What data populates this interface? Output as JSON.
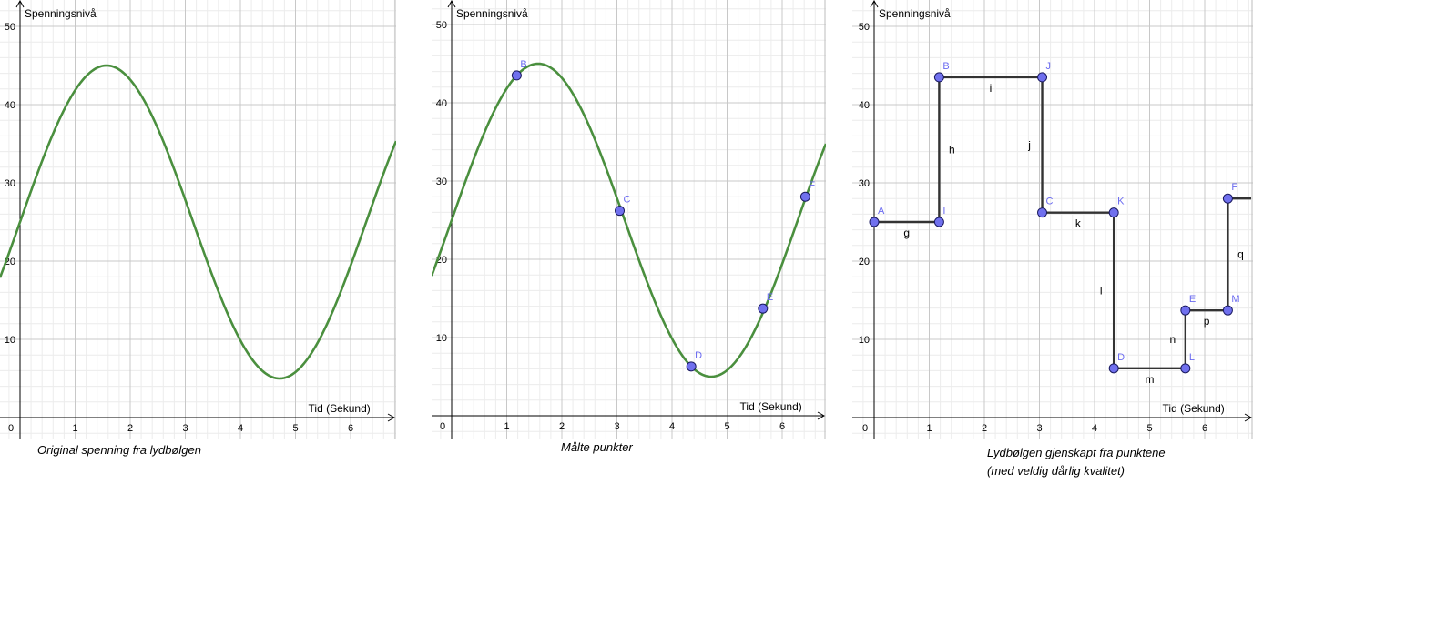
{
  "colors": {
    "curve": "#4a8f3e",
    "point_fill": "#7070ee",
    "point_stroke": "#1a1a60",
    "point_label": "#6b6bf0",
    "step_line": "#333333",
    "grid_major": "#c8c8c8",
    "grid_minor": "#ececec",
    "axis": "#000000"
  },
  "chart_data": [
    {
      "type": "line",
      "caption": "Original spenning fra lydbølgen",
      "ylabel": "Spenningsnivå",
      "xlabel": "Tid (Sekund)",
      "xlim": [
        -0.35,
        6.8
      ],
      "ylim": [
        -3.2,
        53
      ],
      "x_ticks": [
        "0",
        "1",
        "2",
        "3",
        "4",
        "5",
        "6"
      ],
      "y_ticks": [
        "10",
        "20",
        "30",
        "40",
        "50"
      ],
      "series": [
        {
          "function": "25 + 20*sin(x)",
          "x": [
            -0.35,
            0,
            0.5,
            1.0,
            1.57,
            2.0,
            2.5,
            3.0,
            3.5,
            4.0,
            4.71,
            5.0,
            5.5,
            6.0,
            6.5,
            6.8
          ],
          "y": [
            18.1,
            25,
            34.6,
            41.8,
            45,
            43.2,
            37,
            27.8,
            18,
            9.9,
            5,
            5.8,
            10.6,
            19.4,
            29.3,
            35.3
          ]
        }
      ]
    },
    {
      "type": "line",
      "caption": "Målte punkter",
      "ylabel": "Spenningsnivå",
      "xlabel": "Tid (Sekund)",
      "xlim": [
        -0.35,
        6.8
      ],
      "ylim": [
        -3.2,
        53
      ],
      "x_ticks": [
        "0",
        "1",
        "2",
        "3",
        "4",
        "5",
        "6"
      ],
      "y_ticks": [
        "10",
        "20",
        "30",
        "40",
        "50"
      ],
      "series": [
        {
          "function": "25 + 20*sin(x)",
          "x": [
            -0.35,
            0,
            0.5,
            1.0,
            1.57,
            2.0,
            2.5,
            3.0,
            3.5,
            4.0,
            4.71,
            5.0,
            5.5,
            6.0,
            6.5,
            6.8
          ],
          "y": [
            18.1,
            25,
            34.6,
            41.8,
            45,
            43.2,
            37,
            27.8,
            18,
            9.9,
            5,
            5.8,
            10.6,
            19.4,
            29.3,
            35.3
          ]
        }
      ],
      "points": [
        {
          "label": "B",
          "x": 1.18,
          "y": 43.5
        },
        {
          "label": "C",
          "x": 3.05,
          "y": 26.2
        },
        {
          "label": "D",
          "x": 4.35,
          "y": 6.3
        },
        {
          "label": "E",
          "x": 5.65,
          "y": 13.7
        },
        {
          "label": "F",
          "x": 6.42,
          "y": 28.0
        }
      ]
    },
    {
      "type": "line",
      "caption": "Lydbølgen gjenskapt fra punktene",
      "caption_line2": "(med veldig dårlig kvalitet)",
      "ylabel": "Spenningsnivå",
      "xlabel": "Tid (Sekund)",
      "xlim": [
        -0.35,
        6.8
      ],
      "ylim": [
        -3.2,
        53
      ],
      "x_ticks": [
        "0",
        "1",
        "2",
        "3",
        "4",
        "5",
        "6"
      ],
      "y_ticks": [
        "10",
        "20",
        "30",
        "40",
        "50"
      ],
      "points": [
        {
          "label": "A",
          "x": 0,
          "y": 25.0
        },
        {
          "label": "I",
          "x": 1.18,
          "y": 25.0
        },
        {
          "label": "B",
          "x": 1.18,
          "y": 43.5
        },
        {
          "label": "J",
          "x": 3.05,
          "y": 43.5
        },
        {
          "label": "C",
          "x": 3.05,
          "y": 26.2
        },
        {
          "label": "K",
          "x": 4.35,
          "y": 26.2
        },
        {
          "label": "D",
          "x": 4.35,
          "y": 6.3
        },
        {
          "label": "L",
          "x": 5.65,
          "y": 6.3
        },
        {
          "label": "E",
          "x": 5.65,
          "y": 13.7
        },
        {
          "label": "M",
          "x": 6.42,
          "y": 13.7
        },
        {
          "label": "F",
          "x": 6.42,
          "y": 28.0
        }
      ],
      "segments": [
        {
          "label": "g",
          "from": "A",
          "to": "I"
        },
        {
          "label": "h",
          "from": "I",
          "to": "B"
        },
        {
          "label": "i",
          "from": "B",
          "to": "J"
        },
        {
          "label": "j",
          "from": "J",
          "to": "C"
        },
        {
          "label": "k",
          "from": "C",
          "to": "K"
        },
        {
          "label": "l",
          "from": "K",
          "to": "D"
        },
        {
          "label": "m",
          "from": "D",
          "to": "L"
        },
        {
          "label": "n",
          "from": "L",
          "to": "E"
        },
        {
          "label": "p",
          "from": "E",
          "to": "M"
        },
        {
          "label": "q",
          "from": "M",
          "to": "F"
        }
      ]
    }
  ]
}
